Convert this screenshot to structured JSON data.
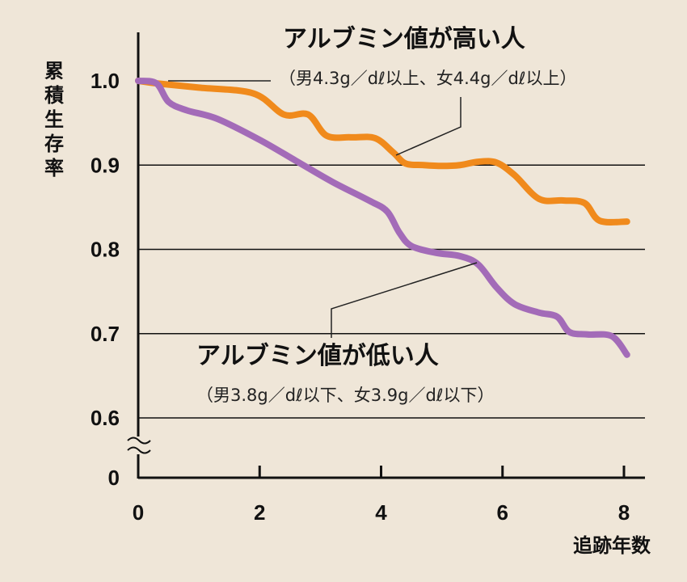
{
  "chart_data": {
    "type": "line",
    "ylabel": "累積生存率",
    "xlabel": "追跡年数",
    "xlim": [
      0,
      8
    ],
    "ylim": [
      0.6,
      1.0
    ],
    "x_ticks": [
      "0",
      "2",
      "4",
      "6",
      "8"
    ],
    "y_ticks": [
      "1.0",
      "0.9",
      "0.8",
      "0.7",
      "0.6"
    ],
    "y_origin_label": "0",
    "y_axis_break": true,
    "grid": "horizontal",
    "series": [
      {
        "name": "アルブミン値が高い人",
        "subtitle": "（男4.3g／dℓ以上、女4.4g／dℓ以上）",
        "color": "#f08a1c",
        "x": [
          0,
          0.3,
          1.0,
          1.9,
          2.4,
          2.8,
          3.1,
          3.5,
          3.9,
          4.2,
          4.4,
          4.7,
          5.0,
          5.3,
          5.6,
          5.9,
          6.2,
          6.6,
          7.0,
          7.35,
          7.6,
          8.05
        ],
        "y": [
          1.0,
          0.997,
          0.992,
          0.985,
          0.96,
          0.96,
          0.935,
          0.933,
          0.932,
          0.915,
          0.902,
          0.9,
          0.899,
          0.9,
          0.904,
          0.903,
          0.888,
          0.86,
          0.858,
          0.855,
          0.834,
          0.833
        ]
      },
      {
        "name": "アルブミン値が低い人",
        "subtitle": "（男3.8g／dℓ以下、女3.9g／dℓ以下）",
        "color": "#a36bb8",
        "x": [
          0,
          0.3,
          0.5,
          0.8,
          1.3,
          2.0,
          2.6,
          3.2,
          3.8,
          4.1,
          4.3,
          4.5,
          4.9,
          5.3,
          5.6,
          5.9,
          6.2,
          6.6,
          6.9,
          7.1,
          7.4,
          7.8,
          8.05
        ],
        "y": [
          1.0,
          0.997,
          0.975,
          0.965,
          0.955,
          0.93,
          0.905,
          0.88,
          0.858,
          0.845,
          0.82,
          0.804,
          0.796,
          0.792,
          0.782,
          0.755,
          0.735,
          0.725,
          0.72,
          0.702,
          0.699,
          0.697,
          0.675
        ]
      }
    ]
  }
}
